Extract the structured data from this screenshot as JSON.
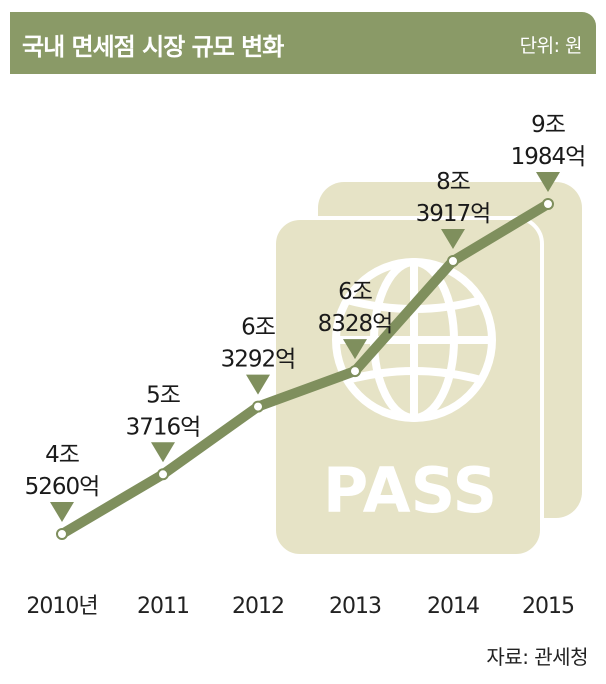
{
  "header": {
    "title": "국내 면세점 시장 규모 변화",
    "unit": "단위: 원"
  },
  "source": "자료: 관세청",
  "colors": {
    "header": "#8a9a67",
    "line": "#7f8f5d",
    "marker": "#7f8f5d",
    "passport": "#e6e3c6"
  },
  "background_graphic": {
    "text": "PASS",
    "icon": "passport-globe-icon"
  },
  "chart_data": {
    "type": "line",
    "title": "국내 면세점 시장 규모 변화",
    "unit": "원",
    "xlabel": "",
    "ylabel": "",
    "categories": [
      "2010년",
      "2011",
      "2012",
      "2013",
      "2014",
      "2015"
    ],
    "values_krw_eok": [
      45260,
      53716,
      63292,
      68328,
      83917,
      91984
    ],
    "labels": [
      {
        "line1": "4조",
        "line2": "5260억"
      },
      {
        "line1": "5조",
        "line2": "3716억"
      },
      {
        "line1": "6조",
        "line2": "3292억"
      },
      {
        "line1": "6조",
        "line2": "8328억"
      },
      {
        "line1": "8조",
        "line2": "3917억"
      },
      {
        "line1": "9조",
        "line2": "1984억"
      }
    ],
    "ylim": [
      40000,
      95000
    ],
    "grid": false,
    "legend": "none"
  }
}
